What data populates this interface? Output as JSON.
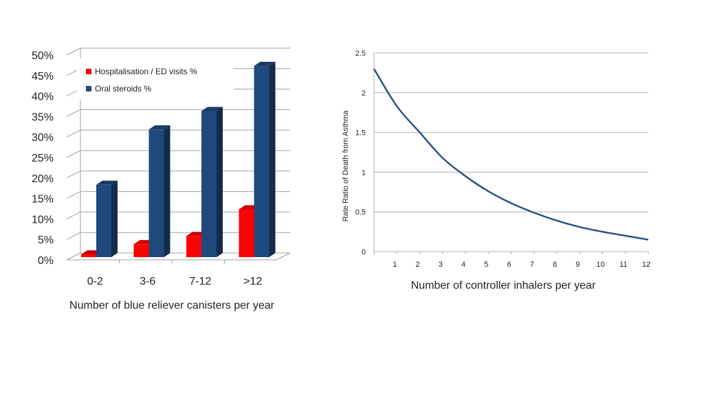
{
  "chart_data": [
    {
      "type": "bar",
      "title": "",
      "xlabel": "Number of blue reliever canisters per year",
      "ylabel": "",
      "categories": [
        "0-2",
        "3-6",
        "7-12",
        ">12"
      ],
      "series": [
        {
          "name": "Hospitalisation / ED visits %",
          "values": [
            2,
            4.5,
            6.5,
            13
          ],
          "color": "#ff0000"
        },
        {
          "name": "Oral steroids %",
          "values": [
            19,
            32.5,
            37,
            48
          ],
          "color": "#1f497d"
        }
      ],
      "ylim": [
        0,
        50
      ],
      "yticks": [
        "0%",
        "5%",
        "10%",
        "15%",
        "20%",
        "25%",
        "30%",
        "35%",
        "40%",
        "45%",
        "50%"
      ],
      "grid": true,
      "legend": "top-left",
      "style": "3d"
    },
    {
      "type": "line",
      "title": "",
      "xlabel": "Number of controller inhalers per year",
      "ylabel": "Rate Ratio of Death from Asthma",
      "x": [
        0,
        1,
        2,
        3,
        4,
        5,
        6,
        7,
        8,
        9,
        10,
        11,
        12
      ],
      "series": [
        {
          "name": "Rate ratio",
          "values": [
            2.3,
            1.83,
            1.5,
            1.18,
            0.95,
            0.76,
            0.61,
            0.49,
            0.39,
            0.31,
            0.25,
            0.2,
            0.15
          ],
          "color": "#2f5183"
        }
      ],
      "xlim": [
        0,
        12
      ],
      "ylim": [
        0,
        2.5
      ],
      "xticks": [
        "1",
        "2",
        "3",
        "4",
        "5",
        "6",
        "7",
        "8",
        "9",
        "10",
        "11",
        "12"
      ],
      "yticks": [
        "0",
        "0.5",
        "1",
        "1.5",
        "2",
        "2.5"
      ],
      "grid": true
    }
  ]
}
